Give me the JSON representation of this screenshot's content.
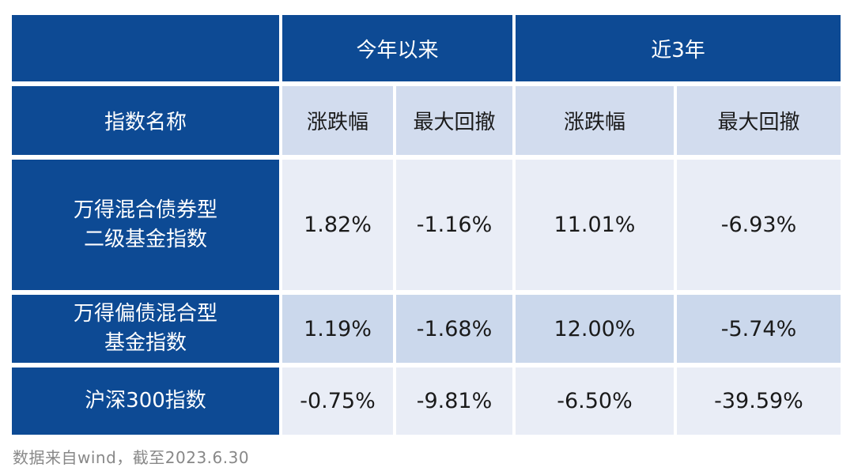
{
  "table": {
    "corner": "",
    "col_groups": [
      {
        "label": "今年以来"
      },
      {
        "label": "近3年"
      }
    ],
    "name_header": "指数名称",
    "sub_headers": [
      "涨跌幅",
      "最大回撤",
      "涨跌幅",
      "最大回撤"
    ],
    "rows": [
      {
        "name_line1": "万得混合债券型",
        "name_line2": "二级基金指数",
        "values": [
          "1.82%",
          "-1.16%",
          "11.01%",
          "-6.93%"
        ]
      },
      {
        "name_line1": "万得偏债混合型",
        "name_line2": "基金指数",
        "values": [
          "1.19%",
          "-1.68%",
          "12.00%",
          "-5.74%"
        ]
      },
      {
        "name_line1": "沪深300指数",
        "name_line2": "",
        "values": [
          "-0.75%",
          "-9.81%",
          "-6.50%",
          "-39.59%"
        ]
      }
    ]
  },
  "footer": {
    "source_note": "数据来自wind，截至2023.6.30"
  },
  "colors": {
    "header_blue": "#0d4a94",
    "subheader_cell": "#d2dcee",
    "row_light": "#e9edf6",
    "row_mid": "#cbd8ec",
    "text_dark": "#1a1a1a",
    "footer_text": "#888888"
  },
  "chart_data": {
    "type": "table",
    "title": "",
    "row_header": "指数名称",
    "column_groups": [
      {
        "label": "今年以来",
        "columns": [
          "涨跌幅",
          "最大回撤"
        ]
      },
      {
        "label": "近3年",
        "columns": [
          "涨跌幅",
          "最大回撤"
        ]
      }
    ],
    "rows": [
      {
        "index_name": "万得混合债券型二级基金指数",
        "ytd_change": "1.82%",
        "ytd_max_drawdown": "-1.16%",
        "three_year_change": "11.01%",
        "three_year_max_drawdown": "-6.93%"
      },
      {
        "index_name": "万得偏债混合型基金指数",
        "ytd_change": "1.19%",
        "ytd_max_drawdown": "-1.68%",
        "three_year_change": "12.00%",
        "three_year_max_drawdown": "-5.74%"
      },
      {
        "index_name": "沪深300指数",
        "ytd_change": "-0.75%",
        "ytd_max_drawdown": "-9.81%",
        "three_year_change": "-6.50%",
        "three_year_max_drawdown": "-39.59%"
      }
    ],
    "source_note": "数据来自wind，截至2023.6.30"
  }
}
